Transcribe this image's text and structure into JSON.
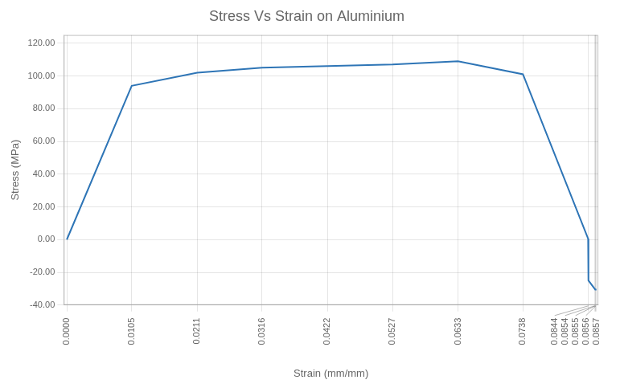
{
  "chart_data": {
    "type": "line",
    "title": "Stress Vs Strain on Aluminium",
    "xlabel": "Strain (mm/mm)",
    "ylabel": "Stress (MPa)",
    "color": "#2E75B6",
    "x": [
      0.0,
      0.0105,
      0.0211,
      0.0316,
      0.0422,
      0.0527,
      0.0633,
      0.0738,
      0.08435,
      0.0844,
      0.0854,
      0.0855,
      0.0856,
      0.0857
    ],
    "values": [
      0.0,
      94.0,
      102.0,
      105.0,
      106.0,
      107.0,
      109.0,
      101.0,
      0.5,
      -25.0,
      -30.0,
      -30.5,
      -30.5,
      -30.5
    ],
    "xlim": [
      -0.0005,
      0.086
    ],
    "xticks": [
      {
        "value": 0,
        "label": "0.0000"
      },
      0.0105,
      0.0211,
      0.0316,
      0.0422,
      0.0527,
      0.0633,
      0.0738,
      0.0844,
      0.0854,
      0.0855,
      0.0856,
      0.0857
    ],
    "ylim": [
      -40,
      125
    ],
    "yticks": [
      {
        "value": -40,
        "label": "-40.00"
      },
      {
        "value": -20,
        "label": "-20.00"
      },
      {
        "value": 0,
        "label": "0.00"
      },
      {
        "value": 20,
        "label": "20.00"
      },
      {
        "value": 40,
        "label": "40.00"
      },
      {
        "value": 60,
        "label": "60.00"
      },
      {
        "value": 80,
        "label": "80.00"
      },
      {
        "value": 100,
        "label": "100.00"
      },
      {
        "value": 120,
        "label": "120.00"
      }
    ],
    "grid": true
  }
}
